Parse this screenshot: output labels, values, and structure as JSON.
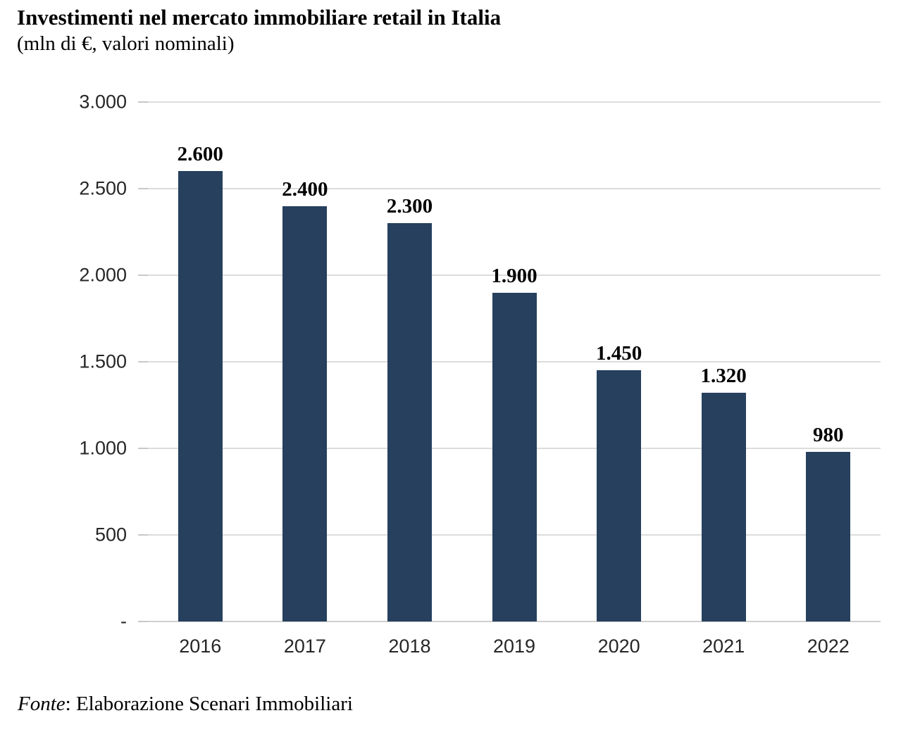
{
  "header": {
    "title": "Investimenti nel mercato immobiliare retail in Italia",
    "subtitle": "(mln di €, valori nominali)"
  },
  "source": {
    "prefix_italic": "Fonte",
    "rest": ": Elaborazione Scenari Immobiliari"
  },
  "chart_data": {
    "type": "bar",
    "title": "Investimenti nel mercato immobiliare retail in Italia",
    "subtitle": "(mln di €, valori nominali)",
    "categories": [
      "2016",
      "2017",
      "2018",
      "2019",
      "2020",
      "2021",
      "2022"
    ],
    "values": [
      2600,
      2400,
      2300,
      1900,
      1450,
      1320,
      980
    ],
    "value_labels": [
      "2.600",
      "2.400",
      "2.300",
      "1.900",
      "1.450",
      "1.320",
      "980"
    ],
    "xlabel": "",
    "ylabel": "",
    "ylim": [
      0,
      3000
    ],
    "yticks": [
      {
        "value": 3000,
        "label": "3.000"
      },
      {
        "value": 2500,
        "label": "2.500"
      },
      {
        "value": 2000,
        "label": "2.000"
      },
      {
        "value": 1500,
        "label": "1.500"
      },
      {
        "value": 1000,
        "label": "1.000"
      },
      {
        "value": 500,
        "label": "500"
      },
      {
        "value": 0,
        "label": "-"
      }
    ],
    "grid": "horizontal",
    "legend": "none",
    "bar_color": "#26405E",
    "gridline_color": "#dcdcdc",
    "axis_line_color": "#d0d0d0",
    "label_color": "#262626",
    "source": "Fonte: Elaborazione Scenari Immobiliari"
  }
}
